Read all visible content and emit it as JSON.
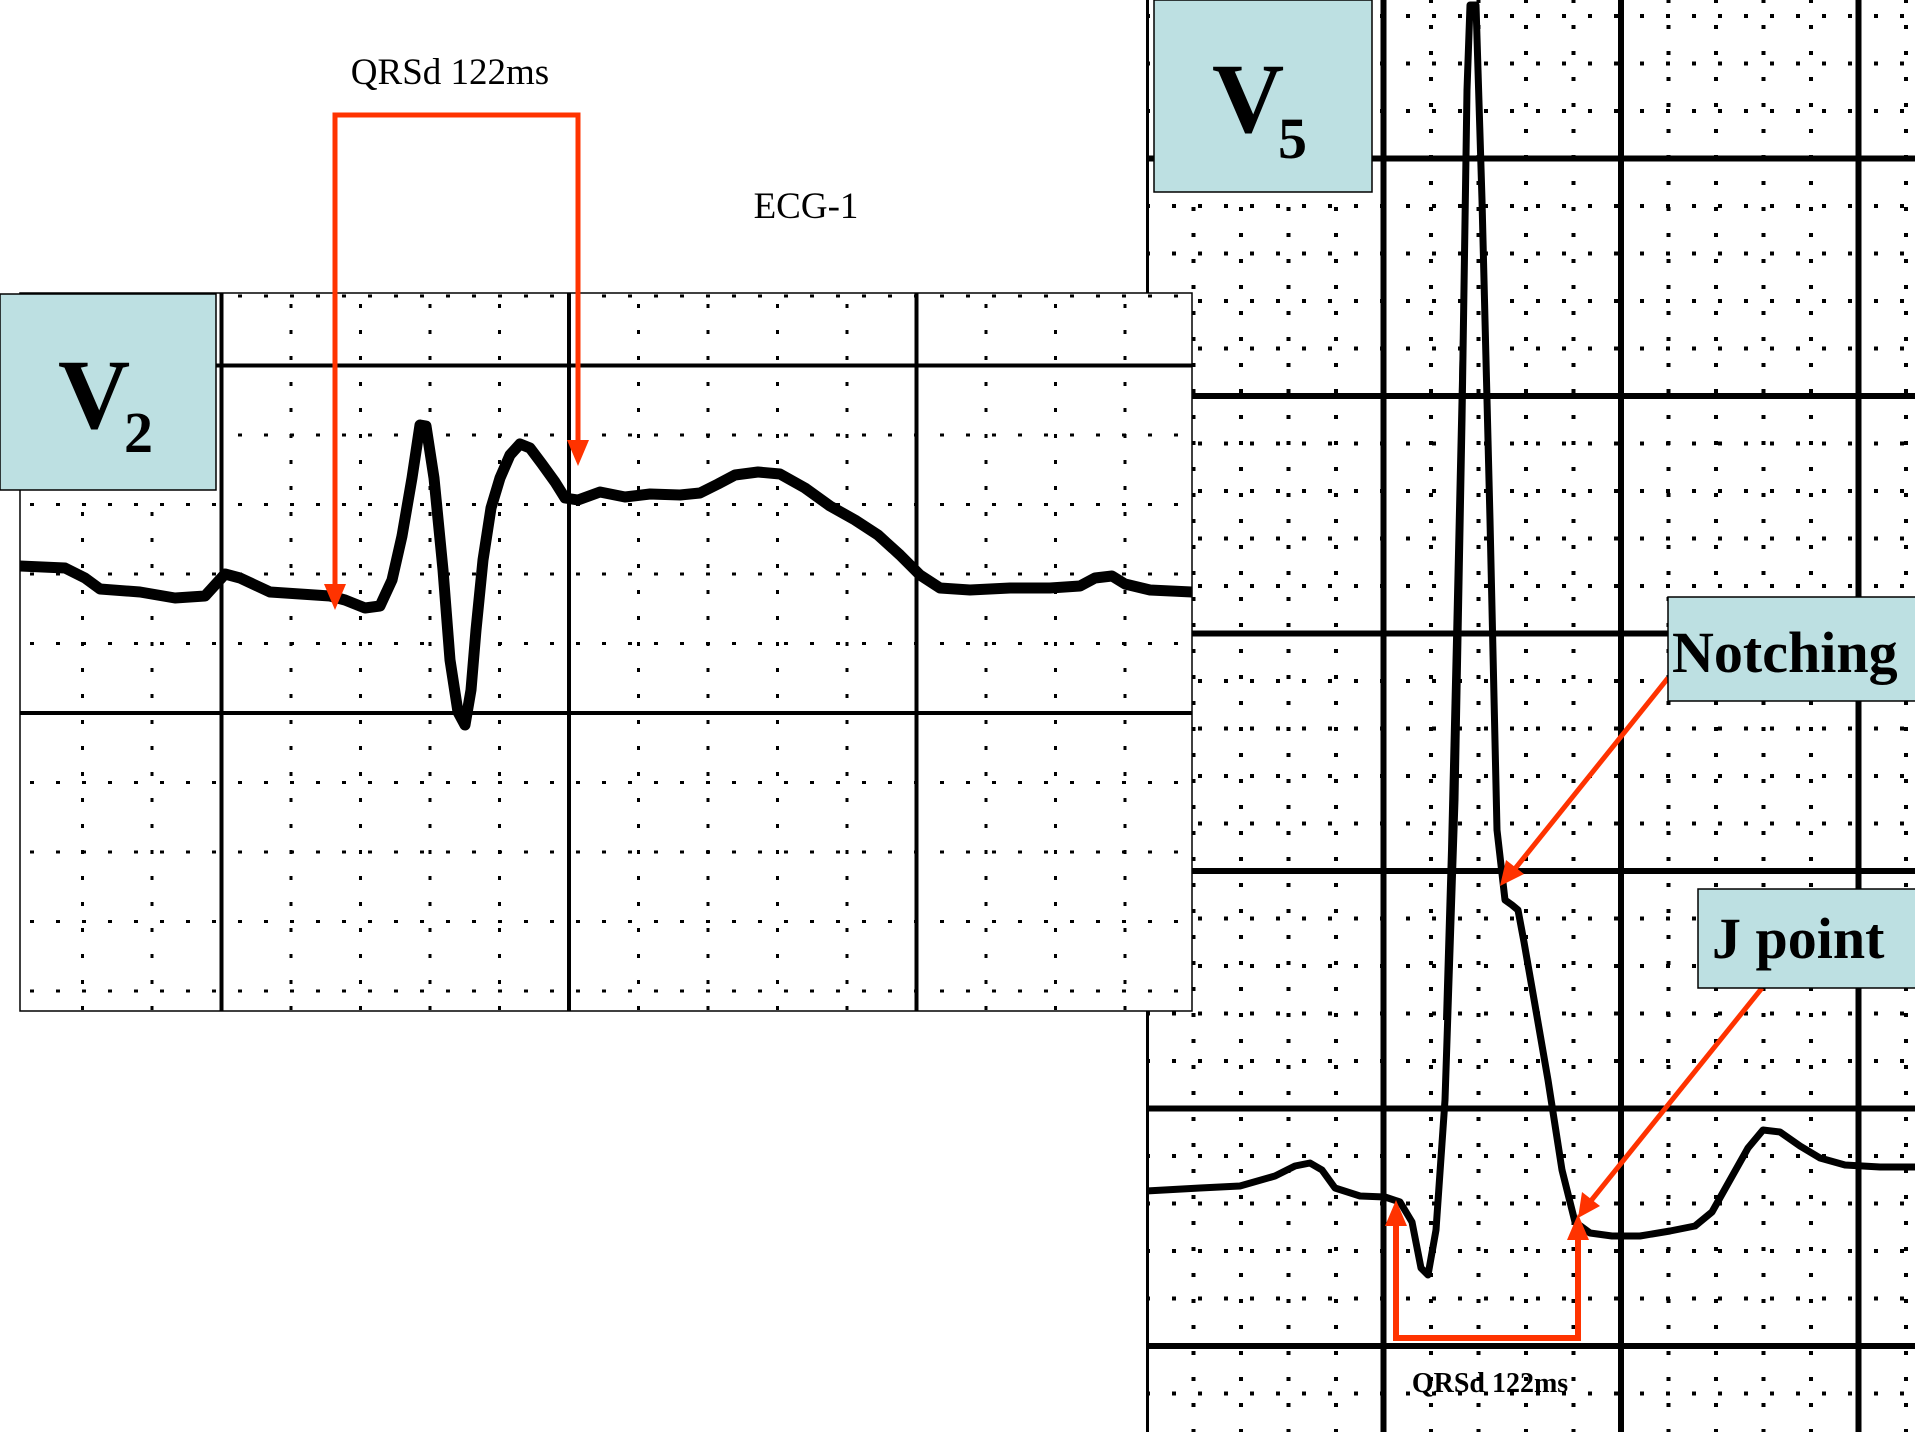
{
  "figure_label": "ECG-1",
  "colors": {
    "annotation": "#FF3300",
    "trace": "#000000",
    "label_box": "#BDE0E2",
    "grid": "#000000"
  },
  "panel_v2": {
    "lead_letter": "V",
    "lead_number": "2",
    "qrs_label": "QRSd 122ms"
  },
  "panel_v5": {
    "lead_letter": "V",
    "lead_number": "5",
    "qrs_label": "QRSd 122ms",
    "notching_label": "Notching",
    "jpoint_label": "J point"
  }
}
